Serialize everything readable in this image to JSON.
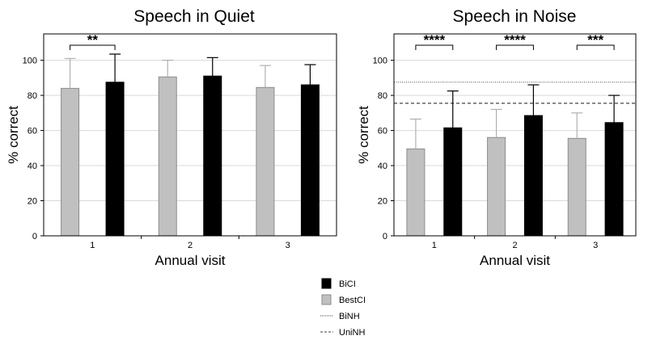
{
  "chart_data": [
    {
      "type": "bar",
      "title": "Speech in Quiet",
      "xlabel": "Annual visit",
      "ylabel": "% correct",
      "categories": [
        "1",
        "2",
        "3"
      ],
      "ylim": [
        0,
        115
      ],
      "yticks": [
        0,
        20,
        40,
        60,
        80,
        100
      ],
      "grid": true,
      "series": [
        {
          "name": "BestCI",
          "color": "#c0c0c0",
          "values": [
            84,
            90.5,
            84.5
          ],
          "error": [
            17,
            9.5,
            12.5
          ]
        },
        {
          "name": "BiCI",
          "color": "#000000",
          "values": [
            87.5,
            91,
            86
          ],
          "error": [
            16,
            10.5,
            11.5
          ]
        }
      ],
      "reference_lines": [],
      "significance": [
        {
          "category": "1",
          "label": "**"
        }
      ]
    },
    {
      "type": "bar",
      "title": "Speech in Noise",
      "xlabel": "Annual visit",
      "ylabel": "% correct",
      "categories": [
        "1",
        "2",
        "3"
      ],
      "ylim": [
        0,
        115
      ],
      "yticks": [
        0,
        20,
        40,
        60,
        80,
        100
      ],
      "grid": true,
      "series": [
        {
          "name": "BestCI",
          "color": "#c0c0c0",
          "values": [
            49.5,
            56,
            55.5
          ],
          "error": [
            17,
            16,
            14.5
          ]
        },
        {
          "name": "BiCI",
          "color": "#000000",
          "values": [
            61.5,
            68.5,
            64.5
          ],
          "error": [
            21,
            17.5,
            15.5
          ]
        }
      ],
      "reference_lines": [
        {
          "name": "BiNH",
          "value": 87.5,
          "style": "dotted"
        },
        {
          "name": "UniNH",
          "value": 75.5,
          "style": "dashed"
        }
      ],
      "significance": [
        {
          "category": "1",
          "label": "****"
        },
        {
          "category": "2",
          "label": "****"
        },
        {
          "category": "3",
          "label": "***"
        }
      ]
    }
  ],
  "legend": {
    "placement": "bottom-center",
    "entries": [
      {
        "label": "BiCI",
        "kind": "box",
        "color": "#000000"
      },
      {
        "label": "BestCI",
        "kind": "box",
        "color": "#c0c0c0"
      },
      {
        "label": "BiNH",
        "kind": "line",
        "style": "dotted"
      },
      {
        "label": "UniNH",
        "kind": "line",
        "style": "dashed"
      }
    ]
  }
}
